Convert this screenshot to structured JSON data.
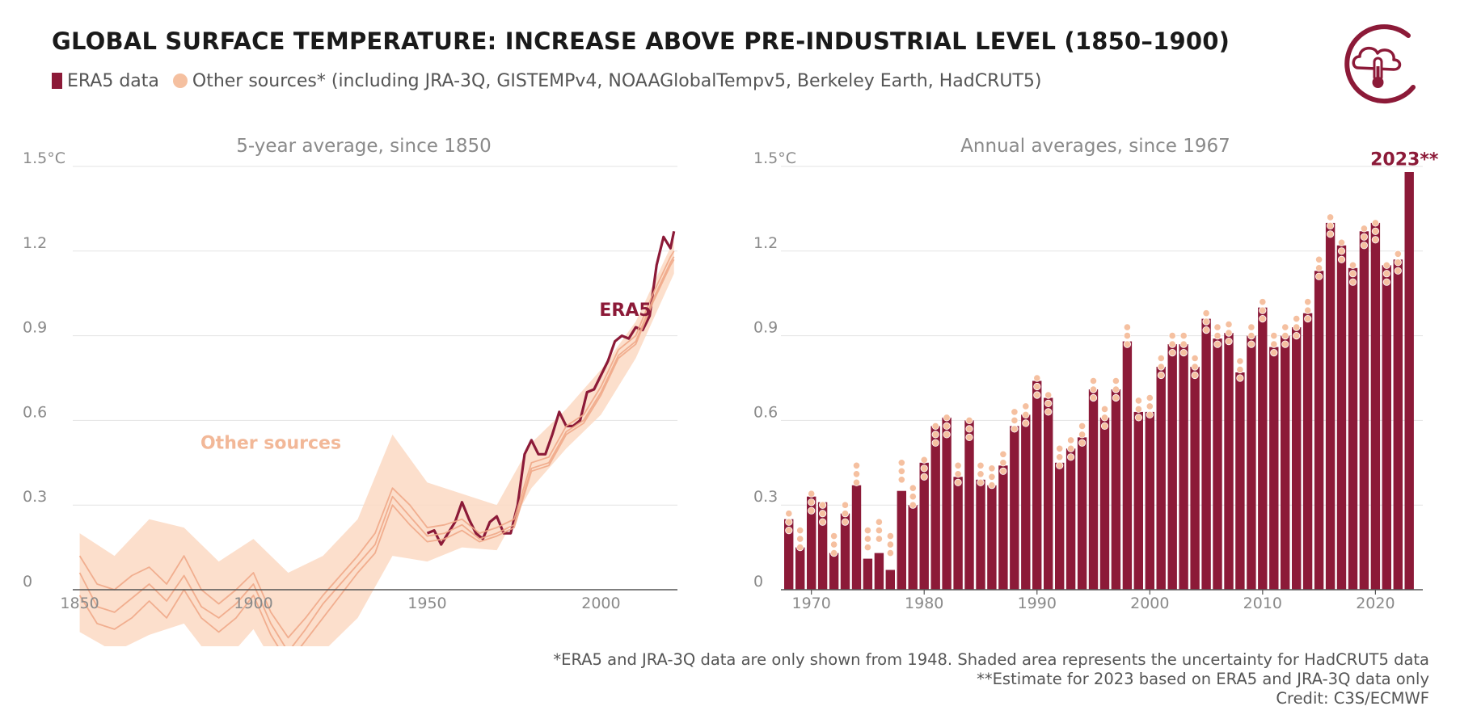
{
  "header": {
    "title": "GLOBAL SURFACE TEMPERATURE: INCREASE ABOVE PRE-INDUSTRIAL LEVEL (1850–1900)",
    "legend": [
      {
        "label": "ERA5 data",
        "color": "#8c1a38",
        "shape": "square"
      },
      {
        "label": "Other sources* (including JRA-3Q, GISTEMPv4, NOAAGlobalTempv5, Berkeley Earth, HadCRUT5)",
        "color": "#f5c0a0",
        "shape": "circle"
      }
    ]
  },
  "logo": {
    "icon": "cloud-thermometer-icon",
    "color": "#8c1a38"
  },
  "footnotes": {
    "line1": "*ERA5 and JRA-3Q data are only shown from 1948. Shaded area represents the uncertainty for HadCRUT5 data",
    "line2": "**Estimate for 2023 based on ERA5 and JRA-3Q data only",
    "line3": "Credit: C3S/ECMWF"
  },
  "chart_data": [
    {
      "type": "line",
      "title": "5-year average, since 1850",
      "xlim": [
        1848,
        2022
      ],
      "ylim": [
        -0.33,
        1.5
      ],
      "xticks": [
        1850,
        1900,
        1950,
        2000
      ],
      "yticks": [
        0,
        0.3,
        0.6,
        0.9,
        1.2,
        1.5
      ],
      "ytick_labels": [
        "0",
        "0.3",
        "0.6",
        "0.9",
        "1.2",
        "1.5°C"
      ],
      "grid": true,
      "colors": {
        "era5": "#8c1a38",
        "other": "#f0a888",
        "band": "#fbd9c3"
      },
      "annotations": [
        {
          "text": "ERA5",
          "x": 2007,
          "y": 0.97,
          "color": "#8c1a38"
        },
        {
          "text": "Other sources",
          "x": 1905,
          "y": 0.5,
          "color": "#f2b898"
        }
      ],
      "series": [
        {
          "name": "ERA5",
          "key": "era5",
          "x": [
            1950,
            1952,
            1954,
            1956,
            1958,
            1960,
            1962,
            1964,
            1966,
            1968,
            1970,
            1972,
            1974,
            1976,
            1978,
            1980,
            1982,
            1984,
            1986,
            1988,
            1990,
            1992,
            1994,
            1996,
            1998,
            2000,
            2002,
            2004,
            2006,
            2008,
            2010,
            2012,
            2014,
            2016,
            2018,
            2020,
            2021
          ],
          "y": [
            0.2,
            0.21,
            0.16,
            0.2,
            0.24,
            0.31,
            0.25,
            0.2,
            0.18,
            0.24,
            0.26,
            0.2,
            0.2,
            0.3,
            0.48,
            0.53,
            0.48,
            0.48,
            0.55,
            0.63,
            0.58,
            0.58,
            0.6,
            0.7,
            0.71,
            0.76,
            0.81,
            0.88,
            0.9,
            0.89,
            0.93,
            0.92,
            0.97,
            1.15,
            1.25,
            1.21,
            1.27
          ]
        },
        {
          "key": "other",
          "x": [
            1850,
            1855,
            1860,
            1865,
            1870,
            1875,
            1880,
            1885,
            1890,
            1895,
            1900,
            1905,
            1910,
            1915,
            1920,
            1925,
            1930,
            1935,
            1940,
            1945,
            1950,
            1955,
            1960,
            1965,
            1970,
            1975,
            1980,
            1985,
            1990,
            1995,
            2000,
            2005,
            2010,
            2015,
            2020,
            2021
          ],
          "y": [
            0.12,
            0.02,
            0.0,
            0.05,
            0.08,
            0.02,
            0.12,
            0.0,
            -0.05,
            0.0,
            0.06,
            -0.08,
            -0.17,
            -0.1,
            -0.02,
            0.05,
            0.12,
            0.2,
            0.36,
            0.3,
            0.22,
            0.23,
            0.25,
            0.2,
            0.22,
            0.25,
            0.45,
            0.47,
            0.58,
            0.62,
            0.72,
            0.85,
            0.9,
            1.05,
            1.18,
            1.2
          ]
        },
        {
          "key": "other",
          "x": [
            1850,
            1855,
            1860,
            1865,
            1870,
            1875,
            1880,
            1885,
            1890,
            1895,
            1900,
            1905,
            1910,
            1915,
            1920,
            1925,
            1930,
            1935,
            1940,
            1945,
            1950,
            1955,
            1960,
            1965,
            1970,
            1975,
            1980,
            1985,
            1990,
            1995,
            2000,
            2005,
            2010,
            2015,
            2020,
            2021
          ],
          "y": [
            0.06,
            -0.06,
            -0.08,
            -0.03,
            0.02,
            -0.04,
            0.05,
            -0.06,
            -0.1,
            -0.05,
            0.02,
            -0.12,
            -0.22,
            -0.14,
            -0.05,
            0.02,
            0.09,
            0.16,
            0.33,
            0.26,
            0.19,
            0.2,
            0.23,
            0.18,
            0.2,
            0.23,
            0.43,
            0.45,
            0.56,
            0.6,
            0.7,
            0.83,
            0.88,
            1.03,
            1.16,
            1.18
          ]
        },
        {
          "key": "other",
          "x": [
            1850,
            1855,
            1860,
            1865,
            1870,
            1875,
            1880,
            1885,
            1890,
            1895,
            1900,
            1905,
            1910,
            1915,
            1920,
            1925,
            1930,
            1935,
            1940,
            1945,
            1950,
            1955,
            1960,
            1965,
            1970,
            1975,
            1980,
            1985,
            1990,
            1995,
            2000,
            2005,
            2010,
            2015,
            2020,
            2021
          ],
          "y": [
            -0.02,
            -0.12,
            -0.14,
            -0.1,
            -0.04,
            -0.1,
            0.0,
            -0.1,
            -0.15,
            -0.1,
            -0.02,
            -0.16,
            -0.26,
            -0.18,
            -0.1,
            -0.02,
            0.06,
            0.13,
            0.3,
            0.23,
            0.17,
            0.18,
            0.21,
            0.17,
            0.19,
            0.22,
            0.42,
            0.44,
            0.55,
            0.59,
            0.69,
            0.82,
            0.87,
            1.02,
            1.15,
            1.17
          ]
        }
      ],
      "uncertainty_band": {
        "x": [
          1850,
          1860,
          1870,
          1880,
          1890,
          1900,
          1910,
          1920,
          1930,
          1940,
          1950,
          1960,
          1970,
          1980,
          1990,
          2000,
          2010,
          2021
        ],
        "lower": [
          -0.15,
          -0.22,
          -0.16,
          -0.12,
          -0.28,
          -0.14,
          -0.35,
          -0.22,
          -0.1,
          0.12,
          0.1,
          0.15,
          0.14,
          0.36,
          0.5,
          0.62,
          0.82,
          1.12
        ],
        "upper": [
          0.2,
          0.12,
          0.25,
          0.22,
          0.1,
          0.18,
          0.06,
          0.12,
          0.25,
          0.55,
          0.38,
          0.34,
          0.3,
          0.52,
          0.64,
          0.78,
          0.95,
          1.24
        ]
      }
    },
    {
      "type": "bar",
      "title": "Annual averages, since 1967",
      "xlim": [
        1967.3,
        2024.2
      ],
      "ylim": [
        0,
        1.5
      ],
      "xticks": [
        1970,
        1980,
        1990,
        2000,
        2010,
        2020
      ],
      "yticks": [
        0,
        0.3,
        0.6,
        0.9,
        1.2,
        1.5
      ],
      "ytick_labels": [
        "0",
        "0.3",
        "0.6",
        "0.9",
        "1.2",
        "1.5°C"
      ],
      "grid": true,
      "colors": {
        "bar": "#8c1a38",
        "dot": "#f5c0a0"
      },
      "annotations": [
        {
          "text": "2023**",
          "x": 2023,
          "y": 1.47,
          "color": "#8c1a38"
        }
      ],
      "series": [
        {
          "name": "ERA5 data",
          "x": [
            1968,
            1969,
            1970,
            1971,
            1972,
            1973,
            1974,
            1975,
            1976,
            1977,
            1978,
            1979,
            1980,
            1981,
            1982,
            1983,
            1984,
            1985,
            1986,
            1987,
            1988,
            1989,
            1990,
            1991,
            1992,
            1993,
            1994,
            1995,
            1996,
            1997,
            1998,
            1999,
            2000,
            2001,
            2002,
            2003,
            2004,
            2005,
            2006,
            2007,
            2008,
            2009,
            2010,
            2011,
            2012,
            2013,
            2014,
            2015,
            2016,
            2017,
            2018,
            2019,
            2020,
            2021,
            2022,
            2023
          ],
          "y": [
            0.25,
            0.15,
            0.33,
            0.31,
            0.13,
            0.27,
            0.37,
            0.11,
            0.13,
            0.07,
            0.35,
            0.3,
            0.45,
            0.58,
            0.61,
            0.4,
            0.6,
            0.39,
            0.37,
            0.44,
            0.58,
            0.62,
            0.74,
            0.68,
            0.45,
            0.5,
            0.54,
            0.71,
            0.61,
            0.71,
            0.88,
            0.63,
            0.63,
            0.79,
            0.87,
            0.87,
            0.79,
            0.96,
            0.89,
            0.91,
            0.77,
            0.9,
            1.0,
            0.86,
            0.9,
            0.93,
            0.98,
            1.13,
            1.3,
            1.22,
            1.14,
            1.27,
            1.3,
            1.15,
            1.17,
            1.48
          ]
        },
        {
          "name": "Other sources",
          "x": [
            1968,
            1969,
            1970,
            1971,
            1972,
            1973,
            1974,
            1975,
            1976,
            1977,
            1978,
            1979,
            1980,
            1981,
            1982,
            1983,
            1984,
            1985,
            1986,
            1987,
            1988,
            1989,
            1990,
            1991,
            1992,
            1993,
            1994,
            1995,
            1996,
            1997,
            1998,
            1999,
            2000,
            2001,
            2002,
            2003,
            2004,
            2005,
            2006,
            2007,
            2008,
            2009,
            2010,
            2011,
            2012,
            2013,
            2014,
            2015,
            2016,
            2017,
            2018,
            2019,
            2020,
            2021,
            2022
          ],
          "y": [
            0.24,
            0.18,
            0.31,
            0.27,
            0.16,
            0.27,
            0.41,
            0.18,
            0.21,
            0.16,
            0.42,
            0.33,
            0.43,
            0.55,
            0.58,
            0.41,
            0.57,
            0.41,
            0.4,
            0.45,
            0.6,
            0.62,
            0.72,
            0.66,
            0.47,
            0.5,
            0.55,
            0.71,
            0.61,
            0.71,
            0.9,
            0.64,
            0.65,
            0.79,
            0.87,
            0.87,
            0.79,
            0.95,
            0.9,
            0.91,
            0.78,
            0.9,
            0.99,
            0.87,
            0.9,
            0.93,
            0.99,
            1.14,
            1.29,
            1.2,
            1.12,
            1.25,
            1.27,
            1.12,
            1.16
          ]
        }
      ]
    }
  ]
}
